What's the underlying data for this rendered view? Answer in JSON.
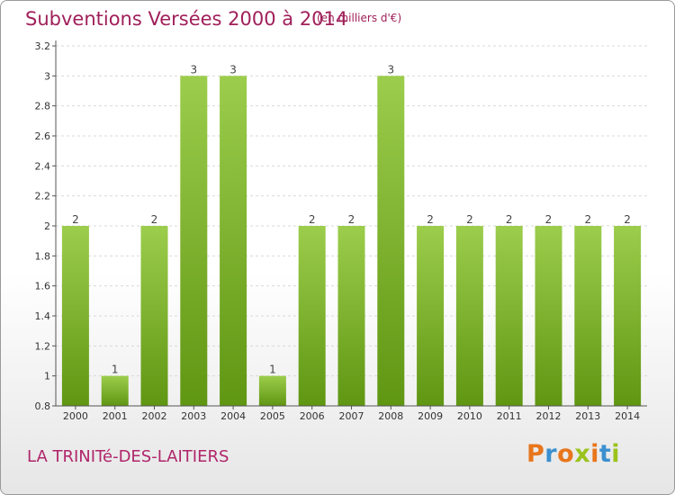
{
  "header": {
    "title": "Subventions Versées 2000 à 2014",
    "unit_note": "(en milliers d'€)"
  },
  "footer": {
    "commune": "LA TRINITé-DES-LAITIERS",
    "logo_letters": [
      "P",
      "r",
      "o",
      "x",
      "i",
      "t",
      "i"
    ],
    "logo_colors": [
      "#e8761c",
      "#3b8fd0",
      "#e8761c",
      "#9bc31c",
      "#e8761c",
      "#3b8fd0",
      "#9bc31c"
    ]
  },
  "colors": {
    "title": "#a0205a",
    "bar_light": "#9ccd4c",
    "bar_dark": "#5f9612",
    "axis": "#555555",
    "grid": "#d9d9d9"
  },
  "chart_data": {
    "type": "bar",
    "title": "Subventions Versées 2000 à 2014",
    "subtitle": "(en milliers d'€)",
    "categories": [
      "2000",
      "2001",
      "2002",
      "2003",
      "2004",
      "2005",
      "2006",
      "2007",
      "2008",
      "2009",
      "2010",
      "2011",
      "2012",
      "2013",
      "2014"
    ],
    "values": [
      2,
      1,
      2,
      3,
      3,
      1,
      2,
      2,
      3,
      2,
      2,
      2,
      2,
      2,
      2
    ],
    "data_labels": [
      "2",
      "1",
      "2",
      "3",
      "3",
      "1",
      "2",
      "2",
      "3",
      "2",
      "2",
      "2",
      "2",
      "2",
      "2"
    ],
    "y_ticks": [
      "0.8",
      "1",
      "1.2",
      "1.4",
      "1.6",
      "1.8",
      "2",
      "2.2",
      "2.4",
      "2.6",
      "2.8",
      "3",
      "3.2"
    ],
    "ylim": [
      0.8,
      3.2
    ],
    "grid": true,
    "legend": false
  }
}
